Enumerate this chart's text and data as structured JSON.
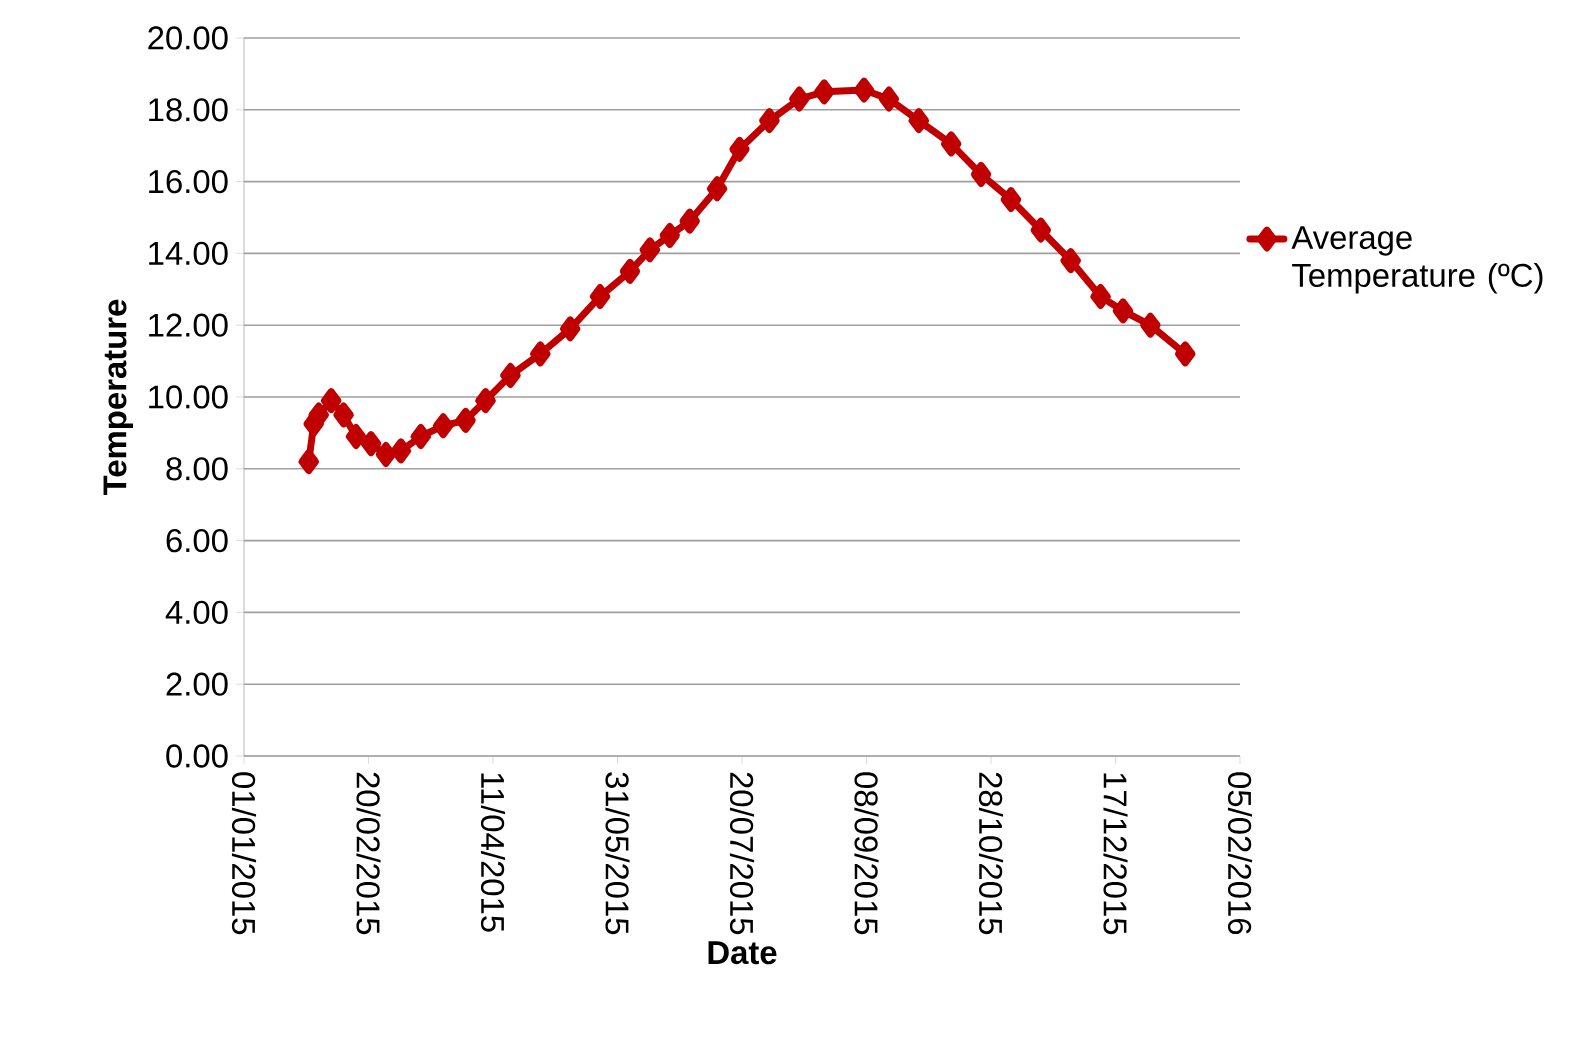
{
  "chart_data": {
    "type": "line",
    "xlabel": "Date",
    "ylabel": "Temperature",
    "x": [
      "2015-01-27",
      "2015-01-29",
      "2015-01-31",
      "2015-02-05",
      "2015-02-10",
      "2015-02-15",
      "2015-02-21",
      "2015-02-27",
      "2015-03-05",
      "2015-03-13",
      "2015-03-22",
      "2015-03-31",
      "2015-04-08",
      "2015-04-18",
      "2015-04-30",
      "2015-05-12",
      "2015-05-24",
      "2015-06-05",
      "2015-06-13",
      "2015-06-21",
      "2015-06-29",
      "2015-07-10",
      "2015-07-19",
      "2015-07-31",
      "2015-08-12",
      "2015-08-22",
      "2015-09-07",
      "2015-09-17",
      "2015-09-29",
      "2015-10-12",
      "2015-10-24",
      "2015-11-05",
      "2015-11-17",
      "2015-11-29",
      "2015-12-11",
      "2015-12-20",
      "2015-12-31",
      "2016-01-14"
    ],
    "series": [
      {
        "name": "Average Temperature (ºC)",
        "color": "#c00000",
        "values": [
          8.2,
          9.25,
          9.5,
          9.9,
          9.5,
          8.9,
          8.7,
          8.4,
          8.5,
          8.9,
          9.2,
          9.35,
          9.9,
          10.6,
          11.2,
          11.9,
          12.8,
          13.5,
          14.1,
          14.5,
          14.9,
          15.8,
          16.9,
          17.7,
          18.3,
          18.5,
          18.55,
          18.3,
          17.7,
          17.05,
          16.2,
          15.5,
          14.65,
          13.8,
          12.8,
          12.4,
          12.0,
          11.2
        ]
      }
    ],
    "xlim": [
      "2015-01-01",
      "2016-02-05"
    ],
    "xticks": [
      {
        "value": "2015-01-01",
        "label": "01/01/2015"
      },
      {
        "value": "2015-02-20",
        "label": "20/02/2015"
      },
      {
        "value": "2015-04-11",
        "label": "11/04/2015"
      },
      {
        "value": "2015-05-31",
        "label": "31/05/2015"
      },
      {
        "value": "2015-07-20",
        "label": "20/07/2015"
      },
      {
        "value": "2015-09-08",
        "label": "08/09/2015"
      },
      {
        "value": "2015-10-28",
        "label": "28/10/2015"
      },
      {
        "value": "2015-12-17",
        "label": "17/12/2015"
      },
      {
        "value": "2016-02-05",
        "label": "05/02/2016"
      }
    ],
    "ylim": [
      0,
      20
    ],
    "yticks": [
      {
        "value": 0,
        "label": "0.00"
      },
      {
        "value": 2,
        "label": "2.00"
      },
      {
        "value": 4,
        "label": "4.00"
      },
      {
        "value": 6,
        "label": "6.00"
      },
      {
        "value": 8,
        "label": "8.00"
      },
      {
        "value": 10,
        "label": "10.00"
      },
      {
        "value": 12,
        "label": "12.00"
      },
      {
        "value": 14,
        "label": "14.00"
      },
      {
        "value": 16,
        "label": "16.00"
      },
      {
        "value": 18,
        "label": "18.00"
      },
      {
        "value": 20,
        "label": "20.00"
      }
    ],
    "grid": "y",
    "legend": "right",
    "marker": "diamond",
    "line_style": "solid"
  }
}
